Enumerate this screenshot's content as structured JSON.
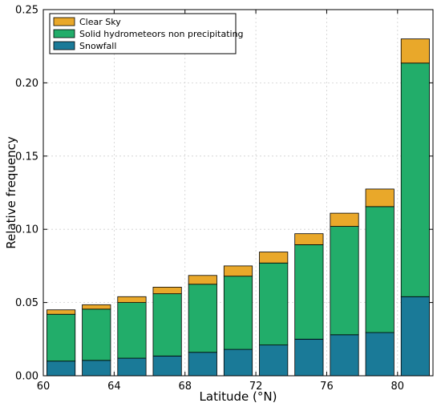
{
  "chart_data": {
    "type": "bar",
    "stacked": true,
    "xlabel": "Latitude (°N)",
    "ylabel": "Relative frequency",
    "x": [
      61,
      63,
      65,
      67,
      69,
      71,
      73,
      75,
      77,
      79,
      81
    ],
    "xlim": [
      60,
      82
    ],
    "ylim": [
      0,
      0.25
    ],
    "xticks": [
      60,
      64,
      68,
      72,
      76,
      80
    ],
    "xtick_labels": [
      "60",
      "64",
      "68",
      "72",
      "76",
      "80"
    ],
    "yticks": [
      0.0,
      0.05,
      0.1,
      0.15,
      0.2,
      0.25
    ],
    "ytick_labels": [
      "0.00",
      "0.05",
      "0.10",
      "0.15",
      "0.20",
      "0.25"
    ],
    "grid": true,
    "legend_position": "top-left",
    "series": [
      {
        "name": "Snowfall",
        "color": "#1a7a98",
        "values": [
          0.01,
          0.0105,
          0.012,
          0.0135,
          0.016,
          0.018,
          0.021,
          0.025,
          0.028,
          0.0295,
          0.054
        ]
      },
      {
        "name": "Solid hydrometeors non precipitating",
        "color": "#22ad6a",
        "values": [
          0.032,
          0.035,
          0.038,
          0.0425,
          0.0465,
          0.05,
          0.056,
          0.0645,
          0.074,
          0.086,
          0.1595
        ]
      },
      {
        "name": "Clear Sky",
        "color": "#e9a82a",
        "values": [
          0.003,
          0.003,
          0.004,
          0.0045,
          0.006,
          0.007,
          0.0075,
          0.0075,
          0.009,
          0.012,
          0.0165
        ]
      }
    ],
    "legend_order": [
      "Clear Sky",
      "Solid hydrometeors non precipitating",
      "Snowfall"
    ]
  }
}
